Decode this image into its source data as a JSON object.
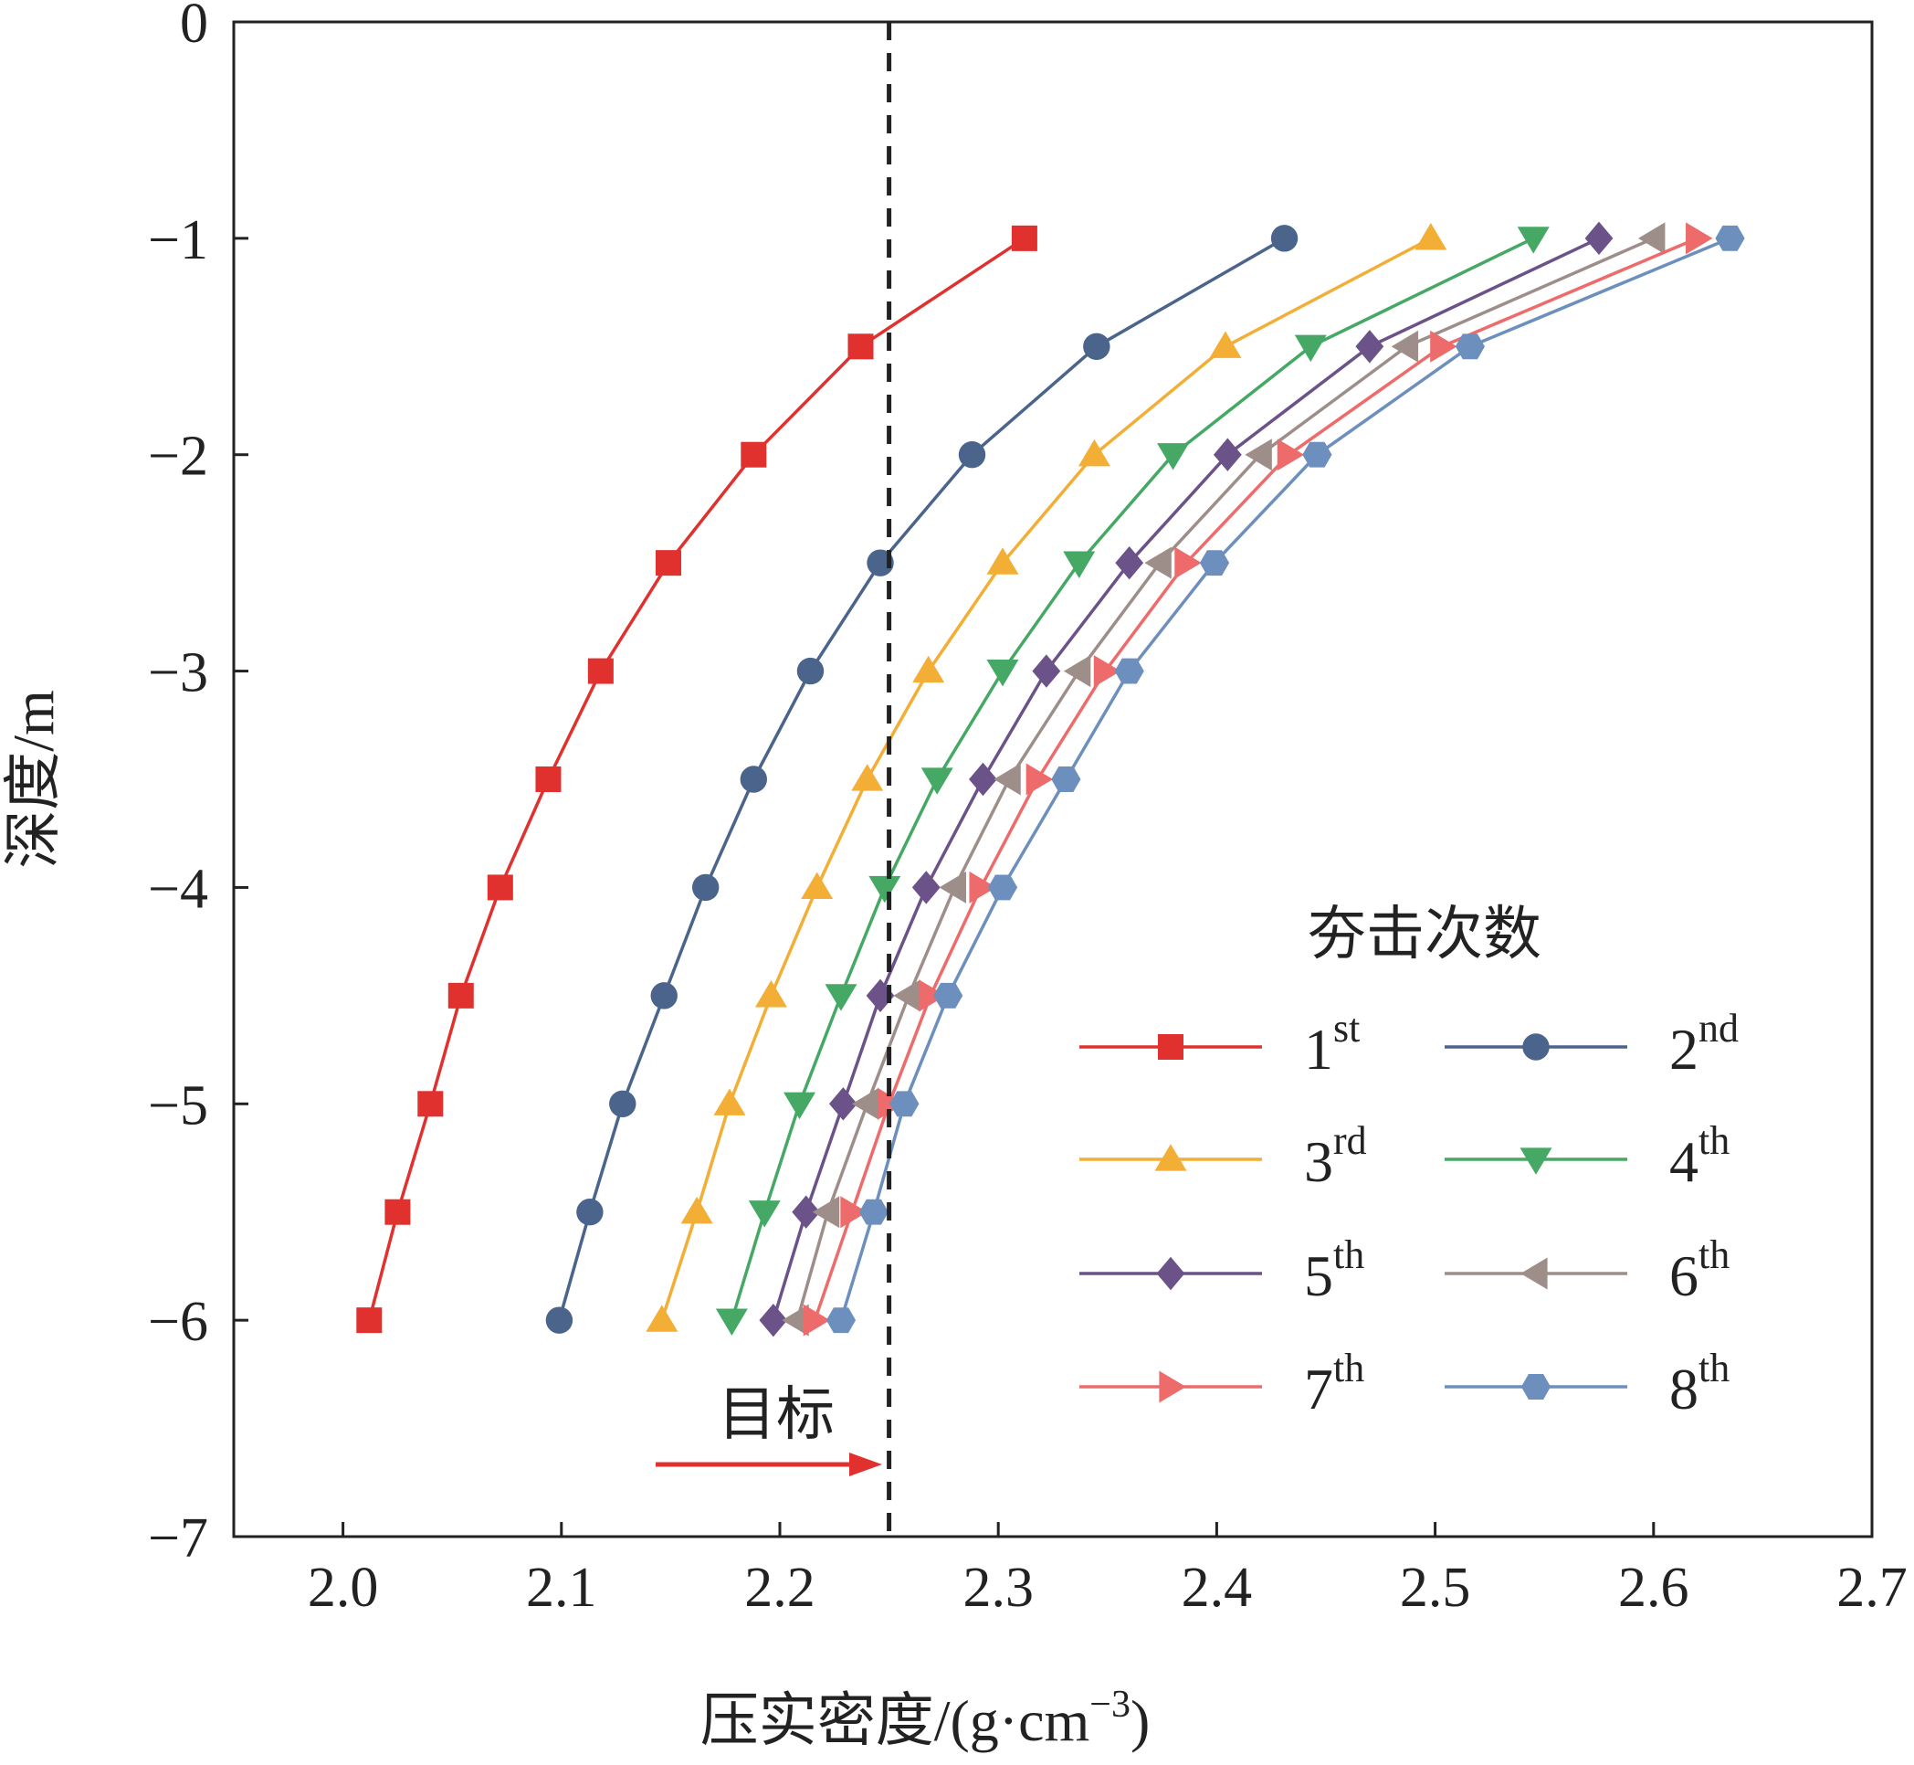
{
  "chart_data": {
    "type": "line",
    "title": "",
    "xlabel": "压实密度/(g·cm",
    "xlabel_sup": "−3",
    "xlabel_end": ")",
    "ylabel": "深度/m",
    "xlim": [
      1.95,
      2.7
    ],
    "ylim": [
      -7,
      0
    ],
    "xticks": [
      2.0,
      2.1,
      2.2,
      2.3,
      2.4,
      2.5,
      2.6,
      2.7
    ],
    "xtick_labels": [
      "2.0",
      "2.1",
      "2.2",
      "2.3",
      "2.4",
      "2.5",
      "2.6",
      "2.7"
    ],
    "yticks": [
      0,
      -1,
      -2,
      -3,
      -4,
      -5,
      -6,
      -7
    ],
    "ytick_labels": [
      "0",
      "−1",
      "−2",
      "−3",
      "−4",
      "−5",
      "−6",
      "−7"
    ],
    "grid": false,
    "legend": {
      "title": "夯击次数",
      "placement": "lower-right",
      "columns": 2
    },
    "y": [
      -1,
      -1.5,
      -2,
      -2.5,
      -3,
      -3.5,
      -4,
      -4.5,
      -5,
      -5.5,
      -6
    ],
    "series": [
      {
        "name": "1",
        "sup": "st",
        "color": "#e0312e",
        "marker": "square",
        "values": [
          2.312,
          2.237,
          2.188,
          2.149,
          2.118,
          2.094,
          2.072,
          2.054,
          2.04,
          2.025,
          2.012
        ]
      },
      {
        "name": "2",
        "sup": "nd",
        "color": "#4a648b",
        "marker": "circle",
        "values": [
          2.431,
          2.345,
          2.288,
          2.246,
          2.214,
          2.188,
          2.166,
          2.147,
          2.128,
          2.113,
          2.099
        ]
      },
      {
        "name": "3",
        "sup": "rd",
        "color": "#f2ae35",
        "marker": "triangle-up",
        "values": [
          2.498,
          2.404,
          2.344,
          2.302,
          2.268,
          2.24,
          2.217,
          2.196,
          2.177,
          2.162,
          2.146
        ]
      },
      {
        "name": "4",
        "sup": "th",
        "color": "#45a865",
        "marker": "triangle-down",
        "values": [
          2.545,
          2.443,
          2.38,
          2.337,
          2.302,
          2.272,
          2.248,
          2.228,
          2.209,
          2.193,
          2.178
        ]
      },
      {
        "name": "5",
        "sup": "th",
        "color": "#6b5288",
        "marker": "diamond",
        "values": [
          2.575,
          2.47,
          2.405,
          2.36,
          2.322,
          2.293,
          2.267,
          2.246,
          2.229,
          2.212,
          2.197
        ]
      },
      {
        "name": "6",
        "sup": "th",
        "color": "#9e8e8a",
        "marker": "triangle-left",
        "values": [
          2.6,
          2.487,
          2.42,
          2.374,
          2.337,
          2.305,
          2.28,
          2.259,
          2.24,
          2.222,
          2.208
        ]
      },
      {
        "name": "7",
        "sup": "th",
        "color": "#ee6b6b",
        "marker": "triangle-right",
        "values": [
          2.62,
          2.503,
          2.433,
          2.386,
          2.349,
          2.318,
          2.292,
          2.269,
          2.25,
          2.233,
          2.216
        ]
      },
      {
        "name": "8",
        "sup": "th",
        "color": "#6d8fbd",
        "marker": "hexagon",
        "values": [
          2.635,
          2.516,
          2.446,
          2.399,
          2.36,
          2.331,
          2.302,
          2.277,
          2.257,
          2.243,
          2.228
        ]
      }
    ],
    "annotations": {
      "target_label": "目标",
      "target_x": 2.25,
      "target_line_color": "#222222",
      "arrow_color": "#e0312e"
    }
  }
}
